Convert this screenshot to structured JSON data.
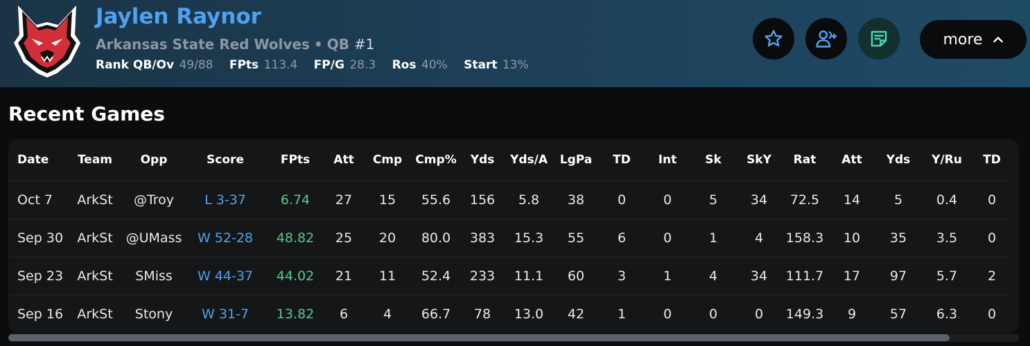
{
  "player": {
    "name": "Jaylen Raynor",
    "team": "Arkansas State Red Wolves",
    "separator": "•",
    "position": "QB",
    "jersey": "#1",
    "stats": [
      {
        "label": "Rank QB/Ov",
        "value": "49/88"
      },
      {
        "label": "FPts",
        "value": "113.4"
      },
      {
        "label": "FP/G",
        "value": "28.3"
      },
      {
        "label": "Ros",
        "value": "40%"
      },
      {
        "label": "Start",
        "value": "13%"
      }
    ]
  },
  "actions": {
    "star_icon": "star-icon",
    "add_user_icon": "add-user-icon",
    "notes_icon": "notes-icon",
    "more_label": "more",
    "accent_color": "#4ea2f0",
    "notes_color": "#4fd6b0"
  },
  "recent_games": {
    "title": "Recent Games",
    "columns": [
      "Date",
      "Team",
      "Opp",
      "Score",
      "FPts",
      "Att",
      "Cmp",
      "Cmp%",
      "Yds",
      "Yds/A",
      "LgPa",
      "TD",
      "Int",
      "Sk",
      "SkY",
      "Rat",
      "Att",
      "Yds",
      "Y/Ru",
      "TD"
    ],
    "rows": [
      [
        "Oct 7",
        "ArkSt",
        "@Troy",
        "L 3-37",
        "6.74",
        "27",
        "15",
        "55.6",
        "156",
        "5.8",
        "38",
        "0",
        "0",
        "5",
        "34",
        "72.5",
        "14",
        "5",
        "0.4",
        "0"
      ],
      [
        "Sep 30",
        "ArkSt",
        "@UMass",
        "W 52-28",
        "48.82",
        "25",
        "20",
        "80.0",
        "383",
        "15.3",
        "55",
        "6",
        "0",
        "1",
        "4",
        "158.3",
        "10",
        "35",
        "3.5",
        "0"
      ],
      [
        "Sep 23",
        "ArkSt",
        "SMiss",
        "W 44-37",
        "44.02",
        "21",
        "11",
        "52.4",
        "233",
        "11.1",
        "60",
        "3",
        "1",
        "4",
        "34",
        "111.7",
        "17",
        "97",
        "5.7",
        "2"
      ],
      [
        "Sep 16",
        "ArkSt",
        "Stony",
        "W 31-7",
        "13.82",
        "6",
        "4",
        "66.7",
        "78",
        "13.0",
        "42",
        "1",
        "0",
        "0",
        "0",
        "149.3",
        "9",
        "57",
        "6.3",
        "0"
      ]
    ],
    "score_color": "#4ea2f0",
    "fpts_color": "#55c98a"
  }
}
